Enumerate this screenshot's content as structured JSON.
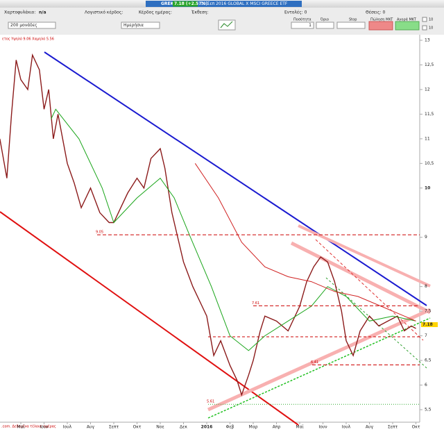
{
  "toolbar": {
    "symbol": "GREK",
    "quote": "7.18 (+2.57%)",
    "caption": "30 Σεπ 2016 GLOBAL X MSCI GREECE ETF",
    "portfolio_label": "Χαρτοφυλάκιο:",
    "portfolio_value": "n/a",
    "book_profit": "Λογιστικό κέρδος:",
    "day_profit": "Κέρδος ημέρας:",
    "exposure": "Έκθεση:",
    "orders": "Εντολές: 0",
    "positions": "Θέσεις: 0",
    "quantity_label": "Ποσότητα",
    "limit_label": "Όριο",
    "stop_label": "Stop",
    "sell_label": "Πώληση MKT",
    "buy_label": "Αγορά MKT",
    "quantity": "1",
    "units_select": "200 μονάδες",
    "period_select": "Ημερήσια",
    "check_1": "10",
    "check_2": "10"
  },
  "chart": {
    "type": "line",
    "info": "ετος Υψηλό 9.06 Χαμηλό 5.56",
    "footer": ".com. Δεδομένα τέλους ημέρας",
    "last_price": "7.18",
    "months": [
      "Μαϊ",
      "Ιουν",
      "Ιουλ",
      "Αυγ",
      "Σεπτ",
      "Οκτ",
      "Νοε",
      "Δεκ",
      "2016",
      "Φεβ",
      "Μαρ",
      "Απρ",
      "Μαϊ",
      "Ιουν",
      "Ιουλ",
      "Αυγ",
      "Σεπτ",
      "Οκτ"
    ],
    "ylim": [
      5.5,
      13
    ],
    "yticks": [
      13,
      {
        "value": 12.5,
        "label": "12,5"
      },
      12,
      {
        "value": 11.5,
        "label": "11,5"
      },
      11,
      {
        "value": 10.5,
        "label": "10,5"
      },
      10,
      9,
      8,
      {
        "value": 7.5,
        "label": "7,5"
      },
      7,
      {
        "value": 6.5,
        "label": "6,5"
      },
      6,
      {
        "value": 5.5,
        "label": "5,5"
      }
    ],
    "levels": [
      {
        "value": 9.05,
        "label": "9.05"
      },
      {
        "value": 7.61,
        "label": "7.61"
      },
      {
        "value": 6.41,
        "label": "6.41"
      },
      {
        "value": 5.61,
        "label": "5.61"
      }
    ],
    "series": [
      {
        "name": "price",
        "color": "#8b1a1a",
        "x": [
          -0.9,
          -0.6,
          -0.4,
          -0.2,
          0,
          0.3,
          0.5,
          0.8,
          1.0,
          1.2,
          1.4,
          1.6,
          2.0,
          2.3,
          2.6,
          3.0,
          3.4,
          3.8,
          4.0,
          4.3,
          4.6,
          5.0,
          5.3,
          5.6,
          6.0,
          6.2,
          6.5,
          7.0,
          7.4,
          7.8,
          8.0,
          8.3,
          8.6,
          9.0,
          9.3,
          9.5,
          9.8,
          10.0,
          10.3,
          10.5,
          11.0,
          11.5,
          12.0,
          12.3,
          12.6,
          12.9,
          13.2,
          13.5,
          13.8,
          14.0,
          14.3,
          14.6,
          15.0,
          15.4,
          15.8,
          16.2,
          16.5,
          16.8,
          17.0
        ],
        "values": [
          11.0,
          10.2,
          11.5,
          12.6,
          12.2,
          12.0,
          12.7,
          12.4,
          11.6,
          12.0,
          11.0,
          11.5,
          10.5,
          10.1,
          9.6,
          10.0,
          9.5,
          9.3,
          9.3,
          9.6,
          9.9,
          10.2,
          10.0,
          10.6,
          10.8,
          10.4,
          9.5,
          8.5,
          8.0,
          7.6,
          7.4,
          6.6,
          6.9,
          6.4,
          6.1,
          5.8,
          6.2,
          6.5,
          7.1,
          7.4,
          7.3,
          7.1,
          7.6,
          8.1,
          8.4,
          8.6,
          8.5,
          8.1,
          7.5,
          6.9,
          6.6,
          7.1,
          7.4,
          7.2,
          7.3,
          7.4,
          7.1,
          7.2,
          7.15
        ]
      },
      {
        "name": "ma-medium",
        "color": "#1aa51a",
        "x": [
          1.3,
          1.5,
          2.5,
          3.5,
          4.0,
          5.0,
          6.0,
          6.6,
          7.3,
          8.2,
          9.0,
          9.8,
          10.5,
          11.5,
          12.5,
          13.2,
          14.0,
          15.0,
          16.0,
          17.0
        ],
        "values": [
          11.4,
          11.6,
          11.0,
          10.0,
          9.3,
          9.8,
          10.2,
          9.8,
          9.0,
          8.0,
          7.0,
          6.7,
          7.0,
          7.3,
          7.6,
          8.0,
          7.8,
          7.3,
          7.4,
          7.3
        ]
      },
      {
        "name": "ma-long",
        "color": "#d02020",
        "x": [
          7.5,
          8.5,
          9.5,
          10.5,
          11.5,
          12.5,
          13.5,
          14.5,
          15.5,
          16.5,
          17.0
        ],
        "values": [
          10.5,
          9.8,
          8.9,
          8.4,
          8.2,
          8.1,
          7.9,
          7.8,
          7.6,
          7.4,
          7.3
        ]
      }
    ]
  }
}
